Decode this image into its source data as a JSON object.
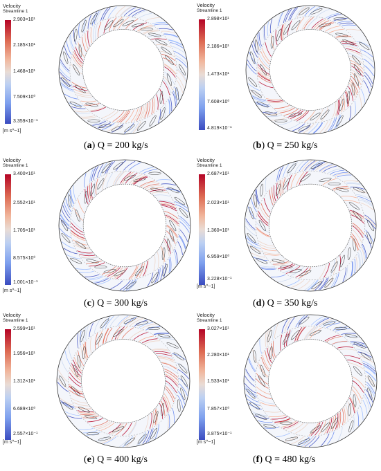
{
  "legend_title": "Velocity",
  "legend_subtitle": "Streamline 1",
  "unit": "[m s^−1]",
  "colors": {
    "high": "#b40426",
    "mid": "#dddcdc",
    "low": "#3b4cc0"
  },
  "panels": [
    {
      "letter": "a",
      "caption": "Q = 200 kg/s",
      "ticks": [
        "2.903×10¹",
        "2.185×10¹",
        "1.468×10¹",
        "7.509×10⁰",
        "3.359×10⁻¹"
      ]
    },
    {
      "letter": "b",
      "caption": "Q = 250 kg/s",
      "ticks": [
        "2.898×10¹",
        "2.186×10¹",
        "1.473×10¹",
        "7.608×10⁰",
        "4.819×10⁻¹"
      ]
    },
    {
      "letter": "c",
      "caption": "Q = 300 kg/s",
      "ticks": [
        "3.400×10¹",
        "2.552×10¹",
        "1.705×10¹",
        "8.575×10⁰",
        "1.001×10⁻¹"
      ]
    },
    {
      "letter": "d",
      "caption": "Q = 350 kg/s",
      "ticks": [
        "2.687×10¹",
        "2.023×10¹",
        "1.360×10¹",
        "6.959×10⁰",
        "3.228×10⁻¹"
      ]
    },
    {
      "letter": "e",
      "caption": "Q = 400 kg/s",
      "ticks": [
        "2.599×10¹",
        "1.956×10¹",
        "1.312×10¹",
        "6.689×10⁰",
        "2.557×10⁻¹"
      ]
    },
    {
      "letter": "f",
      "caption": "Q = 480 kg/s",
      "ticks": [
        "3.027×10¹",
        "2.280×10¹",
        "1.533×10¹",
        "7.857×10⁰",
        "3.875×10⁻¹"
      ]
    }
  ]
}
